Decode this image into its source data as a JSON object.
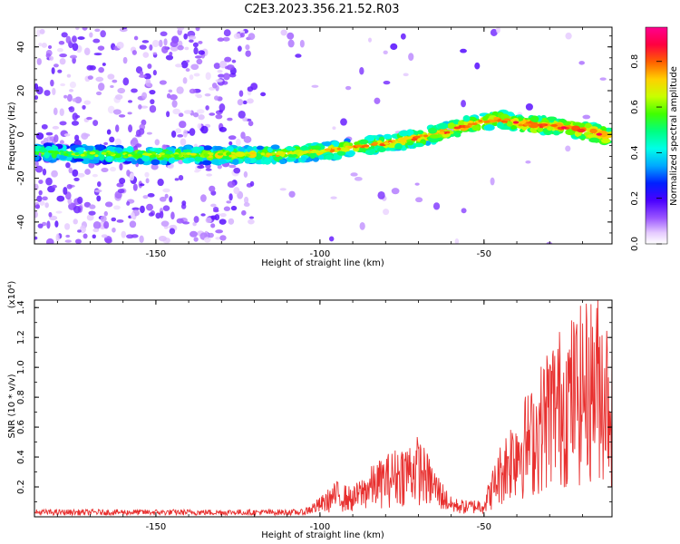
{
  "title": "C2E3.2023.356.21.52.R03",
  "chart_data": [
    {
      "type": "heatmap",
      "title": "C2E3.2023.356.21.52.R03",
      "xlabel": "Height of straight line (km)",
      "ylabel": "Frequency (Hz)",
      "xlim": [
        -187,
        -11
      ],
      "ylim": [
        -50,
        49
      ],
      "x_ticks": [
        -150,
        -100,
        -50
      ],
      "y_ticks": [
        -40,
        -20,
        0,
        20,
        40
      ],
      "colorbar": {
        "label": "Normalized spectral amplitude",
        "range": [
          0,
          0.95
        ],
        "ticks": [
          0.0,
          0.2,
          0.4,
          0.6,
          0.8
        ]
      },
      "ridge": {
        "description": "dominant frequency track",
        "points": [
          [
            -187,
            -8
          ],
          [
            -170,
            -9
          ],
          [
            -150,
            -9.5
          ],
          [
            -130,
            -9.5
          ],
          [
            -110,
            -9
          ],
          [
            -95,
            -7
          ],
          [
            -85,
            -5
          ],
          [
            -75,
            -3
          ],
          [
            -65,
            0
          ],
          [
            -58,
            3
          ],
          [
            -50,
            6
          ],
          [
            -45,
            7
          ],
          [
            -40,
            5
          ],
          [
            -30,
            4
          ],
          [
            -20,
            2
          ],
          [
            -11,
            -1
          ]
        ]
      }
    },
    {
      "type": "line",
      "xlabel": "Height of straight line (km)",
      "ylabel": "SNR (10 * v/v)",
      "y_scale_label": "(x10⁴)",
      "xlim": [
        -187,
        -11
      ],
      "ylim": [
        0,
        1.45
      ],
      "x_ticks": [
        -150,
        -100,
        -50
      ],
      "y_ticks": [
        0.2,
        0.4,
        0.6,
        0.8,
        1.0,
        1.2,
        1.4
      ],
      "color": "#e8302f",
      "envelope": {
        "x": [
          -187,
          -120,
          -105,
          -100,
          -95,
          -90,
          -85,
          -80,
          -75,
          -70,
          -65,
          -60,
          -55,
          -50,
          -45,
          -40,
          -35,
          -30,
          -25,
          -20,
          -15,
          -11
        ],
        "y": [
          0.03,
          0.03,
          0.05,
          0.12,
          0.22,
          0.18,
          0.3,
          0.38,
          0.45,
          0.5,
          0.3,
          0.12,
          0.1,
          0.12,
          0.45,
          0.7,
          0.8,
          1.1,
          1.2,
          1.3,
          1.4,
          1.2
        ]
      }
    }
  ]
}
